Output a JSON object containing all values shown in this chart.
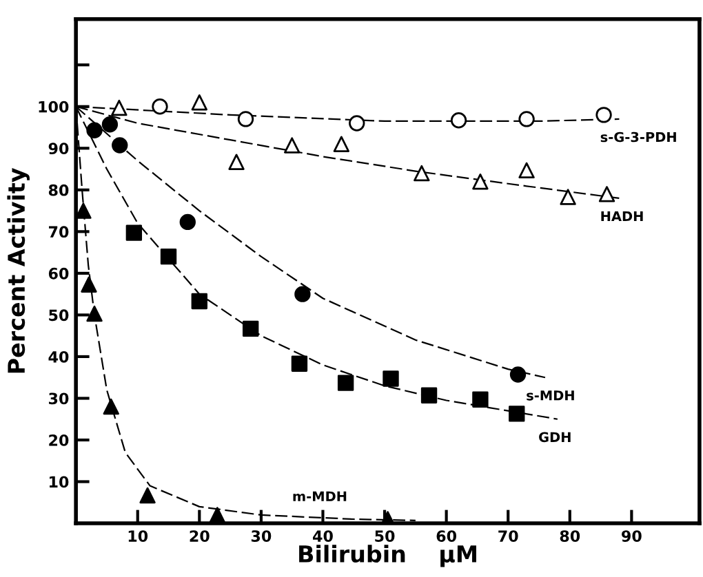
{
  "chart_data": {
    "type": "scatter",
    "xlabel": "Bilirubin    µM",
    "ylabel": "Percent Activity",
    "xlim": [
      0,
      101
    ],
    "ylim": [
      0,
      121
    ],
    "xticks": [
      10,
      20,
      30,
      40,
      50,
      60,
      70,
      80,
      90
    ],
    "yticks": [
      10,
      20,
      30,
      40,
      50,
      60,
      70,
      80,
      90,
      100,
      {
        "value": 110,
        "label": null
      }
    ],
    "grid": false,
    "series": [
      {
        "marker": "circle",
        "color": "#ffffff",
        "x": [
          13.6,
          27.5,
          45.5,
          62,
          73,
          85.5
        ],
        "values": [
          100,
          97,
          96,
          96.7,
          97,
          98
        ]
      },
      {
        "marker": "triangle",
        "color": "#ffffff",
        "x": [
          7,
          20,
          26,
          35,
          43,
          56,
          65.5,
          73,
          79.7,
          86
        ],
        "values": [
          99.7,
          101,
          86.7,
          90.7,
          91,
          84,
          82,
          84.7,
          78.3,
          79
        ]
      },
      {
        "marker": "circle",
        "color": "#000000",
        "x": [
          3,
          5.5,
          7.1,
          18.1,
          36.7,
          71.6
        ],
        "values": [
          94.3,
          95.7,
          90.7,
          72.3,
          55,
          35.7
        ]
      },
      {
        "marker": "square",
        "color": "#000000",
        "x": [
          9.4,
          15,
          20,
          28.3,
          36.2,
          43.7,
          51,
          57.2,
          65.5,
          71.4
        ],
        "values": [
          69.7,
          64,
          53.3,
          46.7,
          38.3,
          33.7,
          34.7,
          30.7,
          29.7,
          26.3
        ]
      },
      {
        "marker": "triangle",
        "color": "#000000",
        "x": [
          1.2,
          2.1,
          3,
          5.7,
          11.6,
          22.9,
          50.5
        ],
        "values": [
          75,
          57.3,
          50.3,
          28,
          6.7,
          2,
          1
        ]
      },
      {
        "type": "line",
        "name": "s-G-3-PDH",
        "line_style": "dashed",
        "color": "#000000",
        "x": [
          0,
          25,
          50,
          75,
          88
        ],
        "values": [
          100,
          98,
          96.5,
          96.5,
          97
        ]
      },
      {
        "type": "line",
        "name": "HADH",
        "line_style": "dashed",
        "color": "#000000",
        "x": [
          0,
          10,
          25,
          40,
          55,
          70,
          88
        ],
        "values": [
          100,
          96,
          92,
          88,
          84.5,
          81.5,
          78
        ]
      },
      {
        "type": "line",
        "name": "s-MDH",
        "line_style": "dashed",
        "color": "#000000",
        "x": [
          0,
          10,
          20,
          30,
          40,
          55,
          70,
          76
        ],
        "values": [
          100,
          87,
          75,
          64,
          54,
          44,
          37,
          35
        ]
      },
      {
        "type": "line",
        "name": "GDH",
        "line_style": "dashed",
        "color": "#000000",
        "x": [
          0,
          5,
          10,
          20,
          30,
          40,
          50,
          60,
          70,
          78
        ],
        "values": [
          100,
          85,
          72,
          55,
          45,
          38,
          33,
          29.5,
          27,
          25
        ]
      },
      {
        "type": "line",
        "name": "m-MDH",
        "line_style": "dashed",
        "color": "#000000",
        "x": [
          0,
          1,
          2,
          3,
          5,
          8,
          12,
          20,
          30,
          45,
          55
        ],
        "values": [
          100,
          80,
          62,
          50,
          32,
          17,
          9,
          4,
          2,
          1,
          0.7
        ]
      }
    ]
  }
}
